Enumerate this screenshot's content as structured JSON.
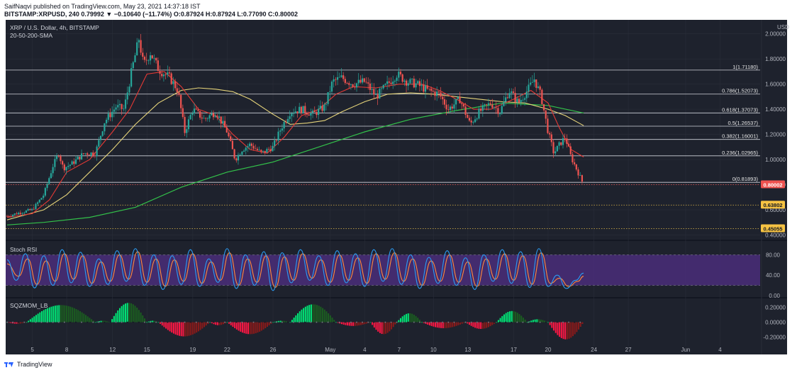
{
  "header": {
    "line1": "SaifNaqvi published on TradingView.com, May 23, 2021 14:37:18 IST",
    "line2": "BITSTAMP:XRPUSD, 240  0.79992  ▼ −0.10640 (−11.74%)  O:0.87924  H:0.87924  L:0.77090  C:0.80002"
  },
  "footer": {
    "brand": "TradingView"
  },
  "colors": {
    "pane_bg": "#1e222d",
    "grid": "#2a2e39",
    "axis_text": "#b2b5be",
    "up": "#26a69a",
    "down": "#ef5350",
    "sma20": "#e53935",
    "sma50": "#e6d47a",
    "sma200": "#33c24a",
    "fib": "#d1d4dc",
    "dotted": "#e0b94a",
    "price_badge": "#ef5350",
    "support_badge": "#f6c343",
    "rsi_band": "#4a2d7a",
    "rsi_k": "#2a9df4",
    "rsi_d": "#ff8a3d",
    "mom_up_strong": "#00e676",
    "mom_up_weak": "#1b5e20",
    "mom_dn_strong": "#ff1744",
    "mom_dn_weak": "#8b1a1a"
  },
  "chart_data": [
    {
      "type": "candlestick",
      "title": "XRP / U.S. Dollar, 4h, BITSTAMP",
      "subtitle": "20-50-200-SMA",
      "axis_unit": "USD",
      "ylim": [
        0.38,
        2.1
      ],
      "y_ticks": [
        "2.00000",
        "1.80000",
        "1.60000",
        "1.40000",
        "1.20000",
        "1.00000",
        "0.80000",
        "0.60000",
        "0.40000"
      ],
      "x_ticks": [
        {
          "label": "5",
          "day": 5
        },
        {
          "label": "8",
          "day": 8
        },
        {
          "label": "12",
          "day": 12
        },
        {
          "label": "15",
          "day": 15
        },
        {
          "label": "19",
          "day": 19
        },
        {
          "label": "22",
          "day": 22
        },
        {
          "label": "26",
          "day": 26
        },
        {
          "label": "May",
          "day": 31
        },
        {
          "label": "4",
          "day": 34
        },
        {
          "label": "7",
          "day": 37
        },
        {
          "label": "10",
          "day": 40
        },
        {
          "label": "13",
          "day": 43
        },
        {
          "label": "17",
          "day": 47
        },
        {
          "label": "20",
          "day": 50
        },
        {
          "label": "24",
          "day": 54
        },
        {
          "label": "27",
          "day": 57
        },
        {
          "label": "Jun",
          "day": 62
        },
        {
          "label": "4",
          "day": 65
        }
      ],
      "xlim_days": [
        2.8,
        68.5
      ],
      "last_day": 53.1,
      "fib_levels": [
        {
          "label": "1(1.71180)",
          "value": 1.7118
        },
        {
          "label": "0.786(1.52073)",
          "value": 1.52073
        },
        {
          "label": "0.618(1.37073)",
          "value": 1.37073
        },
        {
          "label": "0.5(1.26537)",
          "value": 1.26537
        },
        {
          "label": "0.382(1.16001)",
          "value": 1.16001
        },
        {
          "label": "0.236(1.02965)",
          "value": 1.02965
        },
        {
          "label": "0(0.81893)",
          "value": 0.81893
        }
      ],
      "price_line": {
        "value": 0.80002,
        "label": "0.80002"
      },
      "support_lines": [
        {
          "value": 0.63802,
          "label": "0.63802"
        },
        {
          "value": 0.45055,
          "label": "0.45055"
        }
      ],
      "path_points": [
        [
          2.8,
          0.55
        ],
        [
          4,
          0.58
        ],
        [
          5,
          0.6
        ],
        [
          6,
          0.72
        ],
        [
          6.8,
          0.95
        ],
        [
          7.3,
          1.05
        ],
        [
          7.7,
          0.93
        ],
        [
          8.5,
          0.97
        ],
        [
          9.5,
          1.05
        ],
        [
          10.5,
          1.05
        ],
        [
          11.3,
          1.3
        ],
        [
          12.3,
          1.42
        ],
        [
          13,
          1.4
        ],
        [
          13.7,
          1.72
        ],
        [
          14.3,
          1.96
        ],
        [
          14.7,
          1.75
        ],
        [
          15.3,
          1.85
        ],
        [
          16,
          1.72
        ],
        [
          17,
          1.65
        ],
        [
          17.7,
          1.55
        ],
        [
          18.3,
          1.22
        ],
        [
          19,
          1.4
        ],
        [
          20,
          1.32
        ],
        [
          21,
          1.38
        ],
        [
          22,
          1.22
        ],
        [
          22.7,
          1.0
        ],
        [
          23.3,
          1.08
        ],
        [
          24,
          1.12
        ],
        [
          25,
          1.05
        ],
        [
          26,
          1.1
        ],
        [
          26.7,
          1.25
        ],
        [
          27.5,
          1.38
        ],
        [
          28.5,
          1.4
        ],
        [
          29.5,
          1.36
        ],
        [
          30.5,
          1.42
        ],
        [
          31.2,
          1.62
        ],
        [
          32,
          1.65
        ],
        [
          33,
          1.6
        ],
        [
          34,
          1.62
        ],
        [
          35,
          1.5
        ],
        [
          36,
          1.6
        ],
        [
          36.8,
          1.68
        ],
        [
          37.7,
          1.62
        ],
        [
          38.5,
          1.6
        ],
        [
          39.5,
          1.55
        ],
        [
          40.5,
          1.52
        ],
        [
          41.3,
          1.4
        ],
        [
          42.3,
          1.48
        ],
        [
          43.2,
          1.28
        ],
        [
          44,
          1.38
        ],
        [
          45,
          1.45
        ],
        [
          45.8,
          1.38
        ],
        [
          46.6,
          1.55
        ],
        [
          47.4,
          1.45
        ],
        [
          48.2,
          1.55
        ],
        [
          48.8,
          1.64
        ],
        [
          49.4,
          1.5
        ],
        [
          50,
          1.22
        ],
        [
          50.5,
          1.05
        ],
        [
          51,
          1.12
        ],
        [
          51.5,
          1.18
        ],
        [
          52,
          1.02
        ],
        [
          52.5,
          0.92
        ],
        [
          53.1,
          0.8
        ]
      ],
      "sma20_points": [
        [
          2.8,
          0.54
        ],
        [
          5,
          0.57
        ],
        [
          6.5,
          0.68
        ],
        [
          8,
          0.9
        ],
        [
          10,
          1.0
        ],
        [
          12,
          1.22
        ],
        [
          13.5,
          1.4
        ],
        [
          15,
          1.68
        ],
        [
          16.5,
          1.7
        ],
        [
          18,
          1.58
        ],
        [
          19.5,
          1.4
        ],
        [
          21,
          1.35
        ],
        [
          22.5,
          1.2
        ],
        [
          24,
          1.08
        ],
        [
          25.5,
          1.05
        ],
        [
          27,
          1.18
        ],
        [
          28.5,
          1.35
        ],
        [
          30,
          1.4
        ],
        [
          31.5,
          1.52
        ],
        [
          33,
          1.58
        ],
        [
          35,
          1.57
        ],
        [
          37,
          1.6
        ],
        [
          39,
          1.6
        ],
        [
          40.5,
          1.55
        ],
        [
          42,
          1.48
        ],
        [
          43.5,
          1.4
        ],
        [
          45,
          1.4
        ],
        [
          47,
          1.48
        ],
        [
          48.5,
          1.55
        ],
        [
          50,
          1.45
        ],
        [
          51,
          1.25
        ],
        [
          52,
          1.08
        ],
        [
          53.1,
          1.02
        ]
      ],
      "sma50_points": [
        [
          2.8,
          0.52
        ],
        [
          6,
          0.6
        ],
        [
          8,
          0.72
        ],
        [
          10,
          0.9
        ],
        [
          12,
          1.08
        ],
        [
          14,
          1.28
        ],
        [
          16,
          1.45
        ],
        [
          18,
          1.55
        ],
        [
          19.5,
          1.57
        ],
        [
          21,
          1.56
        ],
        [
          22.5,
          1.54
        ],
        [
          24,
          1.48
        ],
        [
          26,
          1.36
        ],
        [
          27.5,
          1.28
        ],
        [
          29,
          1.29
        ],
        [
          30.5,
          1.31
        ],
        [
          32,
          1.38
        ],
        [
          34,
          1.46
        ],
        [
          36,
          1.52
        ],
        [
          38,
          1.53
        ],
        [
          40,
          1.52
        ],
        [
          42,
          1.5
        ],
        [
          44,
          1.48
        ],
        [
          46,
          1.46
        ],
        [
          48,
          1.45
        ],
        [
          50,
          1.4
        ],
        [
          51.5,
          1.35
        ],
        [
          53.1,
          1.27
        ]
      ],
      "sma200_points": [
        [
          2.8,
          0.48
        ],
        [
          6,
          0.5
        ],
        [
          10,
          0.54
        ],
        [
          14,
          0.62
        ],
        [
          18,
          0.78
        ],
        [
          22,
          0.9
        ],
        [
          26,
          0.98
        ],
        [
          30,
          1.1
        ],
        [
          34,
          1.22
        ],
        [
          38,
          1.32
        ],
        [
          42,
          1.39
        ],
        [
          46,
          1.45
        ],
        [
          50,
          1.43
        ],
        [
          53.1,
          1.37
        ]
      ]
    },
    {
      "type": "line",
      "title": "Stoch RSI",
      "ylim": [
        0,
        100
      ],
      "y_ticks": [
        "80.00",
        "40.00",
        "0.00"
      ],
      "band": [
        20,
        80
      ],
      "k_points": [
        [
          2.8,
          70
        ],
        [
          3.6,
          30
        ],
        [
          4.4,
          82
        ],
        [
          5.2,
          15
        ],
        [
          6.0,
          78
        ],
        [
          6.8,
          20
        ],
        [
          7.6,
          90
        ],
        [
          8.4,
          25
        ],
        [
          9.2,
          85
        ],
        [
          10.0,
          18
        ],
        [
          10.8,
          72
        ],
        [
          11.6,
          22
        ],
        [
          12.4,
          88
        ],
        [
          13.2,
          28
        ],
        [
          14.0,
          92
        ],
        [
          14.8,
          20
        ],
        [
          15.6,
          80
        ],
        [
          16.4,
          12
        ],
        [
          17.2,
          78
        ],
        [
          18.0,
          22
        ],
        [
          18.8,
          90
        ],
        [
          19.6,
          18
        ],
        [
          20.4,
          72
        ],
        [
          21.2,
          26
        ],
        [
          22.0,
          92
        ],
        [
          22.8,
          14
        ],
        [
          23.6,
          80
        ],
        [
          24.4,
          20
        ],
        [
          25.2,
          86
        ],
        [
          26.0,
          10
        ],
        [
          26.8,
          84
        ],
        [
          27.6,
          25
        ],
        [
          28.4,
          90
        ],
        [
          29.2,
          30
        ],
        [
          30.0,
          78
        ],
        [
          30.8,
          20
        ],
        [
          31.6,
          88
        ],
        [
          32.4,
          25
        ],
        [
          33.2,
          82
        ],
        [
          34.0,
          18
        ],
        [
          34.8,
          90
        ],
        [
          35.6,
          28
        ],
        [
          36.4,
          92
        ],
        [
          37.2,
          22
        ],
        [
          38.0,
          80
        ],
        [
          38.8,
          14
        ],
        [
          39.6,
          75
        ],
        [
          40.4,
          24
        ],
        [
          41.2,
          88
        ],
        [
          42.0,
          20
        ],
        [
          42.8,
          74
        ],
        [
          43.6,
          12
        ],
        [
          44.4,
          80
        ],
        [
          45.2,
          28
        ],
        [
          46.0,
          90
        ],
        [
          46.8,
          24
        ],
        [
          47.6,
          86
        ],
        [
          48.4,
          16
        ],
        [
          49.2,
          92
        ],
        [
          50.0,
          18
        ],
        [
          50.8,
          40
        ],
        [
          51.6,
          14
        ],
        [
          52.4,
          30
        ],
        [
          53.1,
          44
        ]
      ],
      "d_points": [
        [
          2.8,
          62
        ],
        [
          3.8,
          38
        ],
        [
          4.6,
          72
        ],
        [
          5.4,
          22
        ],
        [
          6.2,
          68
        ],
        [
          7.0,
          28
        ],
        [
          7.8,
          82
        ],
        [
          8.6,
          32
        ],
        [
          9.4,
          78
        ],
        [
          10.2,
          24
        ],
        [
          11.0,
          66
        ],
        [
          11.8,
          28
        ],
        [
          12.6,
          80
        ],
        [
          13.4,
          32
        ],
        [
          14.2,
          86
        ],
        [
          15.0,
          26
        ],
        [
          15.8,
          72
        ],
        [
          16.6,
          18
        ],
        [
          17.4,
          70
        ],
        [
          18.2,
          28
        ],
        [
          19.0,
          82
        ],
        [
          19.8,
          24
        ],
        [
          20.6,
          66
        ],
        [
          21.4,
          30
        ],
        [
          22.2,
          84
        ],
        [
          23.0,
          20
        ],
        [
          23.8,
          72
        ],
        [
          24.6,
          26
        ],
        [
          25.4,
          78
        ],
        [
          26.2,
          16
        ],
        [
          27.0,
          76
        ],
        [
          27.8,
          30
        ],
        [
          28.6,
          82
        ],
        [
          29.4,
          34
        ],
        [
          30.2,
          70
        ],
        [
          31.0,
          26
        ],
        [
          31.8,
          80
        ],
        [
          32.6,
          30
        ],
        [
          33.4,
          74
        ],
        [
          34.2,
          24
        ],
        [
          35.0,
          82
        ],
        [
          35.8,
          32
        ],
        [
          36.6,
          84
        ],
        [
          37.4,
          28
        ],
        [
          38.2,
          72
        ],
        [
          39.0,
          20
        ],
        [
          39.8,
          68
        ],
        [
          40.6,
          28
        ],
        [
          41.4,
          80
        ],
        [
          42.2,
          26
        ],
        [
          43.0,
          66
        ],
        [
          43.8,
          18
        ],
        [
          44.6,
          72
        ],
        [
          45.4,
          32
        ],
        [
          46.2,
          82
        ],
        [
          47.0,
          30
        ],
        [
          47.8,
          78
        ],
        [
          48.6,
          22
        ],
        [
          49.4,
          84
        ],
        [
          50.2,
          24
        ],
        [
          51.0,
          34
        ],
        [
          51.8,
          18
        ],
        [
          52.6,
          28
        ],
        [
          53.1,
          38
        ]
      ]
    },
    {
      "type": "bar",
      "title": "SQZMOM_LB",
      "ylim": [
        -0.28,
        0.3
      ],
      "y_ticks": [
        "0.20000",
        "0.00000",
        "-0.20000"
      ],
      "histogram_waves": [
        {
          "from": 2.8,
          "to": 4.5,
          "peak": -0.02
        },
        {
          "from": 4.5,
          "to": 10.5,
          "peak": 0.23
        },
        {
          "from": 10.5,
          "to": 11.8,
          "peak": 0.02
        },
        {
          "from": 11.8,
          "to": 15.0,
          "peak": 0.26
        },
        {
          "from": 15.0,
          "to": 16.0,
          "peak": 0.02
        },
        {
          "from": 16.0,
          "to": 20.5,
          "peak": -0.19
        },
        {
          "from": 20.5,
          "to": 22.0,
          "peak": -0.04
        },
        {
          "from": 22.0,
          "to": 26.0,
          "peak": -0.16
        },
        {
          "from": 26.0,
          "to": 27.5,
          "peak": 0.02
        },
        {
          "from": 27.5,
          "to": 31.5,
          "peak": 0.24
        },
        {
          "from": 31.5,
          "to": 34.5,
          "peak": -0.05
        },
        {
          "from": 34.5,
          "to": 36.8,
          "peak": -0.16
        },
        {
          "from": 36.8,
          "to": 39.0,
          "peak": 0.12
        },
        {
          "from": 39.0,
          "to": 42.8,
          "peak": -0.08
        },
        {
          "from": 42.8,
          "to": 45.5,
          "peak": -0.09
        },
        {
          "from": 45.5,
          "to": 48.2,
          "peak": 0.15
        },
        {
          "from": 48.2,
          "to": 50.0,
          "peak": 0.04
        },
        {
          "from": 50.0,
          "to": 53.1,
          "peak": -0.23
        }
      ]
    }
  ]
}
